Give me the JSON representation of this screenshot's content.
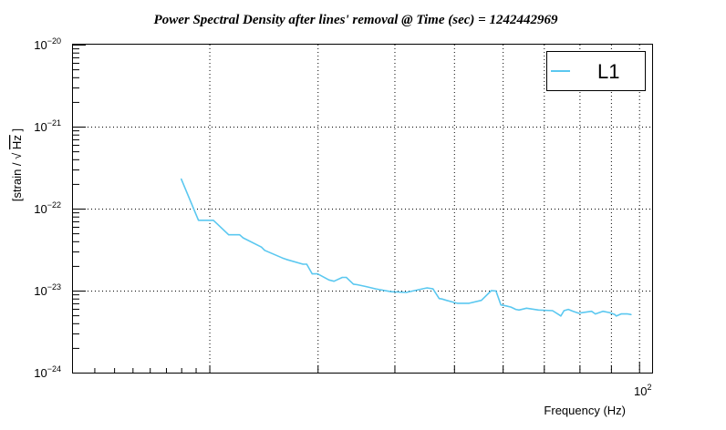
{
  "chart_data": {
    "type": "line",
    "title": "Power Spectral Density after lines' removal @ Time (sec) = 1242442969",
    "xlabel": "Frequency (Hz)",
    "ylabel_prefix": "[strain / ",
    "ylabel_sqrt": "Hz",
    "ylabel_suffix": "]",
    "xscale": "log",
    "yscale": "log",
    "xlim": [
      12,
      105
    ],
    "ylim": [
      1e-24,
      1e-20
    ],
    "grid": true,
    "legend_position": "top-right",
    "x_tick_labels": [
      {
        "value": 100,
        "base": "10",
        "exp": "2"
      }
    ],
    "y_tick_labels": [
      {
        "value": 1e-20,
        "base": "10",
        "exp": "−20"
      },
      {
        "value": 1e-21,
        "base": "10",
        "exp": "−21"
      },
      {
        "value": 1e-22,
        "base": "10",
        "exp": "−22"
      },
      {
        "value": 1e-23,
        "base": "10",
        "exp": "−23"
      },
      {
        "value": 1e-24,
        "base": "10",
        "exp": "−24"
      }
    ],
    "series": [
      {
        "name": "L1",
        "color": "#5bc8f0",
        "x": [
          18,
          19.2,
          20.3,
          20.6,
          21.5,
          22.4,
          22.7,
          24.3,
          24.6,
          26.3,
          26.7,
          28.4,
          28.8,
          29.4,
          30.0,
          31.3,
          31.9,
          32.9,
          33.4,
          34.3,
          34.8,
          36.0,
          37.3,
          39.5,
          41.8,
          43.1,
          45.2,
          46.2,
          47.3,
          47.8,
          48.6,
          50.6,
          52.9,
          55.4,
          57.5,
          58.5,
          59.6,
          60.8,
          61.9,
          63.0,
          63.8,
          65.6,
          68.6,
          72.3,
          74.3,
          74.6,
          75.5,
          76.7,
          78.1,
          79.7,
          83.7,
          84.9,
          87.3,
          89.5,
          91.3,
          91.8,
          93.5,
          95.8,
          97.1
        ],
        "y": [
          2.3e-22,
          7.2e-23,
          7.2e-23,
          6.5e-23,
          4.8e-23,
          4.8e-23,
          4.4e-23,
          3.4e-23,
          3.1e-23,
          2.5e-23,
          2.4e-23,
          2.1e-23,
          2.1e-23,
          1.6e-23,
          1.6e-23,
          1.35e-23,
          1.3e-23,
          1.45e-23,
          1.45e-23,
          1.2e-23,
          1.18e-23,
          1.12e-23,
          1.05e-23,
          9.7e-24,
          9.5e-24,
          1e-23,
          1.08e-23,
          1.05e-23,
          8e-24,
          7.9e-24,
          7.6e-24,
          7e-24,
          7e-24,
          7.6e-24,
          1e-23,
          9.9e-24,
          6.7e-24,
          6.5e-24,
          6.3e-24,
          5.9e-24,
          5.8e-24,
          6.1e-24,
          5.8e-24,
          5.7e-24,
          5e-24,
          4.9e-24,
          5.7e-24,
          5.9e-24,
          5.6e-24,
          5.3e-24,
          5.6e-24,
          5.2e-24,
          5.6e-24,
          5.4e-24,
          5.1e-24,
          4.9e-24,
          5.2e-24,
          5.2e-24,
          5.1e-24
        ]
      }
    ]
  }
}
